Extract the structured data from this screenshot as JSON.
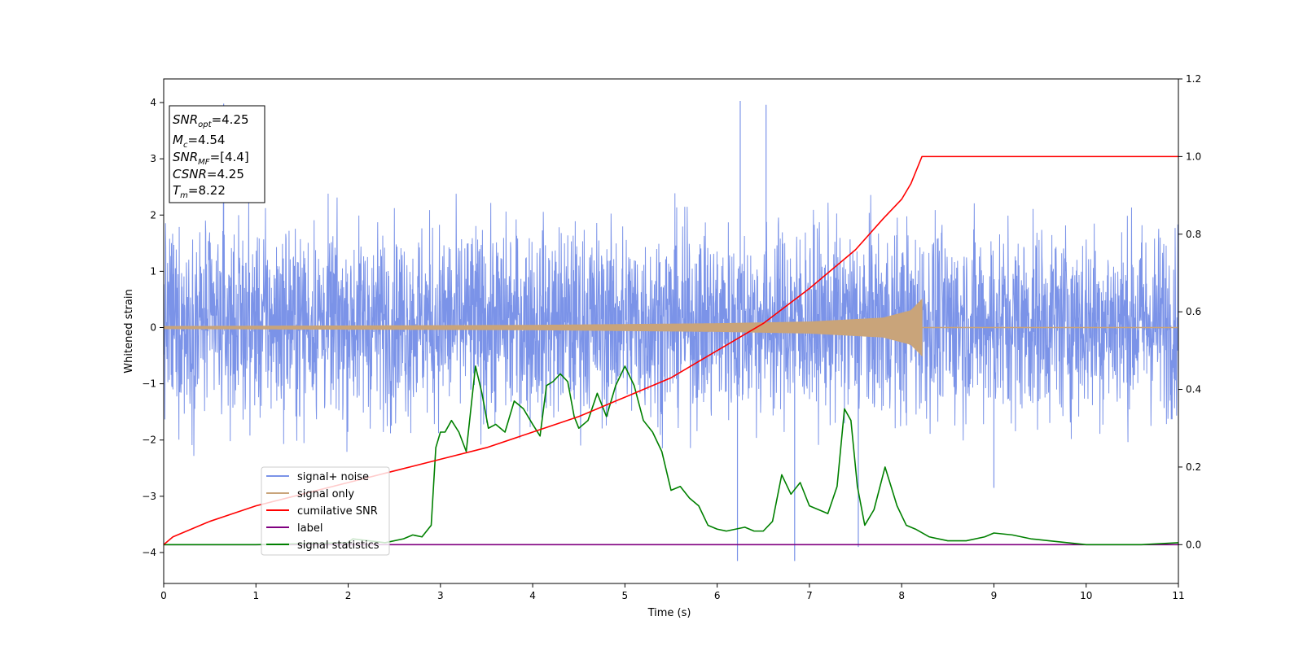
{
  "chart_data": {
    "type": "line",
    "xlabel": "Time (s)",
    "ylabel": "Whitened strain",
    "xlim": [
      0,
      11
    ],
    "ylim": [
      -4.55,
      4.42
    ],
    "y2lim": [
      -0.1,
      1.2
    ],
    "xticks": [
      "0",
      "1",
      "2",
      "3",
      "4",
      "5",
      "6",
      "7",
      "8",
      "9",
      "10",
      "11"
    ],
    "yticks": [
      "4",
      "3",
      "2",
      "1",
      "0",
      "−1",
      "−2",
      "−3",
      "−4"
    ],
    "y2ticks": [
      "1.2",
      "1.0",
      "0.8",
      "0.6",
      "0.4",
      "0.2",
      "0.0"
    ],
    "legend_position": "lower-left",
    "info_box": {
      "snr_opt": {
        "sym": "SNR",
        "sub": "opt",
        "rest": "=4.25"
      },
      "mc": {
        "sym": "M",
        "sub": "c",
        "rest": "=4.54"
      },
      "snr_mf": {
        "sym": "SNR",
        "sub": "MF",
        "rest": "=[4.4]"
      },
      "csnr": {
        "sym": "CSNR",
        "sub": "",
        "rest": "=4.25"
      },
      "tm": {
        "sym": "T",
        "sub": "m",
        "rest": "=8.22"
      }
    },
    "series": [
      {
        "name": "signal+ noise",
        "color": "#7b93e8",
        "description_values": {
          "band_typical": [
            -1.7,
            2.0
          ],
          "spikes": [
            [
              0.65,
              3.98
            ],
            [
              6.25,
              4.03
            ],
            [
              6.53,
              3.96
            ],
            [
              6.22,
              -4.15
            ],
            [
              6.84,
              -4.15
            ],
            [
              7.53,
              -3.9
            ],
            [
              9.0,
              -2.85
            ]
          ]
        }
      },
      {
        "name": "signal only",
        "color": "#c9a47a",
        "merger_time": 8.22,
        "envelope": {
          "x": [
            0,
            4,
            6,
            7,
            7.8,
            8.1,
            8.22
          ],
          "amp": [
            0.02,
            0.04,
            0.07,
            0.1,
            0.17,
            0.3,
            0.5
          ]
        }
      },
      {
        "name": "cumilative SNR",
        "color": "#ff0000",
        "axis": "right",
        "x": [
          0,
          0.1,
          0.5,
          1,
          1.5,
          2,
          2.5,
          3,
          3.5,
          4,
          4.5,
          5,
          5.5,
          6,
          6.5,
          7,
          7.5,
          7.8,
          8.0,
          8.1,
          8.22,
          11
        ],
        "values": [
          0.0,
          0.02,
          0.06,
          0.1,
          0.13,
          0.16,
          0.19,
          0.22,
          0.25,
          0.29,
          0.33,
          0.38,
          0.43,
          0.5,
          0.57,
          0.66,
          0.76,
          0.84,
          0.89,
          0.93,
          1.0,
          1.0
        ]
      },
      {
        "name": "label",
        "color": "#800080",
        "axis": "right",
        "x": [
          0,
          11
        ],
        "values": [
          0.0,
          0.0
        ]
      },
      {
        "name": "signal statistics",
        "color": "#008000",
        "axis": "right",
        "x": [
          0,
          1.0,
          2.0,
          2.05,
          2.4,
          2.6,
          2.7,
          2.8,
          2.9,
          2.95,
          3.0,
          3.05,
          3.12,
          3.2,
          3.28,
          3.38,
          3.45,
          3.52,
          3.6,
          3.7,
          3.8,
          3.9,
          4.0,
          4.08,
          4.15,
          4.22,
          4.3,
          4.38,
          4.45,
          4.5,
          4.6,
          4.7,
          4.8,
          4.9,
          5.0,
          5.1,
          5.2,
          5.3,
          5.4,
          5.5,
          5.6,
          5.7,
          5.8,
          5.9,
          6.0,
          6.1,
          6.2,
          6.3,
          6.4,
          6.5,
          6.6,
          6.7,
          6.8,
          6.9,
          7.0,
          7.1,
          7.2,
          7.3,
          7.38,
          7.45,
          7.52,
          7.6,
          7.7,
          7.82,
          7.95,
          8.05,
          8.15,
          8.3,
          8.5,
          8.7,
          8.9,
          9.0,
          9.2,
          9.4,
          9.6,
          9.8,
          10.0,
          10.3,
          10.6,
          11.0
        ],
        "values": [
          0.0,
          0.0,
          0.005,
          0.015,
          0.005,
          0.015,
          0.025,
          0.02,
          0.05,
          0.25,
          0.29,
          0.29,
          0.32,
          0.29,
          0.24,
          0.46,
          0.39,
          0.3,
          0.31,
          0.29,
          0.37,
          0.35,
          0.31,
          0.28,
          0.41,
          0.42,
          0.44,
          0.42,
          0.33,
          0.3,
          0.32,
          0.39,
          0.33,
          0.41,
          0.46,
          0.41,
          0.32,
          0.29,
          0.24,
          0.14,
          0.15,
          0.12,
          0.1,
          0.05,
          0.04,
          0.035,
          0.04,
          0.045,
          0.035,
          0.035,
          0.06,
          0.18,
          0.13,
          0.16,
          0.1,
          0.09,
          0.08,
          0.15,
          0.35,
          0.32,
          0.15,
          0.05,
          0.09,
          0.2,
          0.1,
          0.05,
          0.04,
          0.02,
          0.01,
          0.01,
          0.02,
          0.03,
          0.025,
          0.015,
          0.01,
          0.005,
          0.0,
          0.0,
          0.0,
          0.005
        ]
      }
    ]
  }
}
